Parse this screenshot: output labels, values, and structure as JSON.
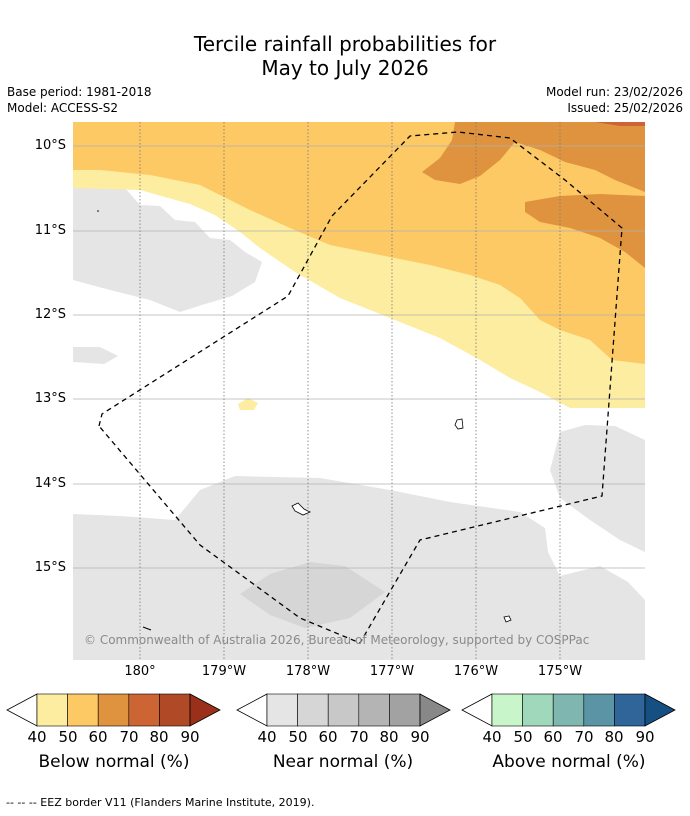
{
  "title": {
    "line1": "Tercile rainfall probabilities for",
    "line2": "May to July 2026"
  },
  "meta": {
    "base_period": "Base period: 1981-2018",
    "model": "Model: ACCESS-S2",
    "model_run": "Model run: 23/02/2026",
    "issued": "Issued: 25/02/2026"
  },
  "axes": {
    "lat_labels": [
      "10°S",
      "11°S",
      "12°S",
      "13°S",
      "14°S",
      "15°S"
    ],
    "lon_labels": [
      "180°",
      "179°W",
      "178°W",
      "177°W",
      "176°W",
      "175°W"
    ]
  },
  "copyright": "© Commonwealth of Australia 2026, Bureau of Meteorology, supported by COSPPac",
  "colorbars": [
    {
      "title": "Below normal (%)",
      "ticks": [
        "40",
        "50",
        "60",
        "70",
        "80",
        "90"
      ],
      "colors": [
        "#fdeda0",
        "#fdc964",
        "#e0933f",
        "#cd6433",
        "#b04a26",
        "#9a3019"
      ]
    },
    {
      "title": "Near normal (%)",
      "ticks": [
        "40",
        "50",
        "60",
        "70",
        "80",
        "90"
      ],
      "colors": [
        "#e5e5e5",
        "#d6d6d6",
        "#c8c8c8",
        "#b4b4b4",
        "#a2a2a2",
        "#888888"
      ]
    },
    {
      "title": "Above normal (%)",
      "ticks": [
        "40",
        "50",
        "60",
        "70",
        "80",
        "90"
      ],
      "colors": [
        "#c8f5c9",
        "#a0d8bb",
        "#80b6b0",
        "#5b94a4",
        "#2f6599",
        "#164f82"
      ]
    }
  ],
  "footer": "--  --  -- EEZ border V11 (Flanders Marine Institute, 2019)."
}
